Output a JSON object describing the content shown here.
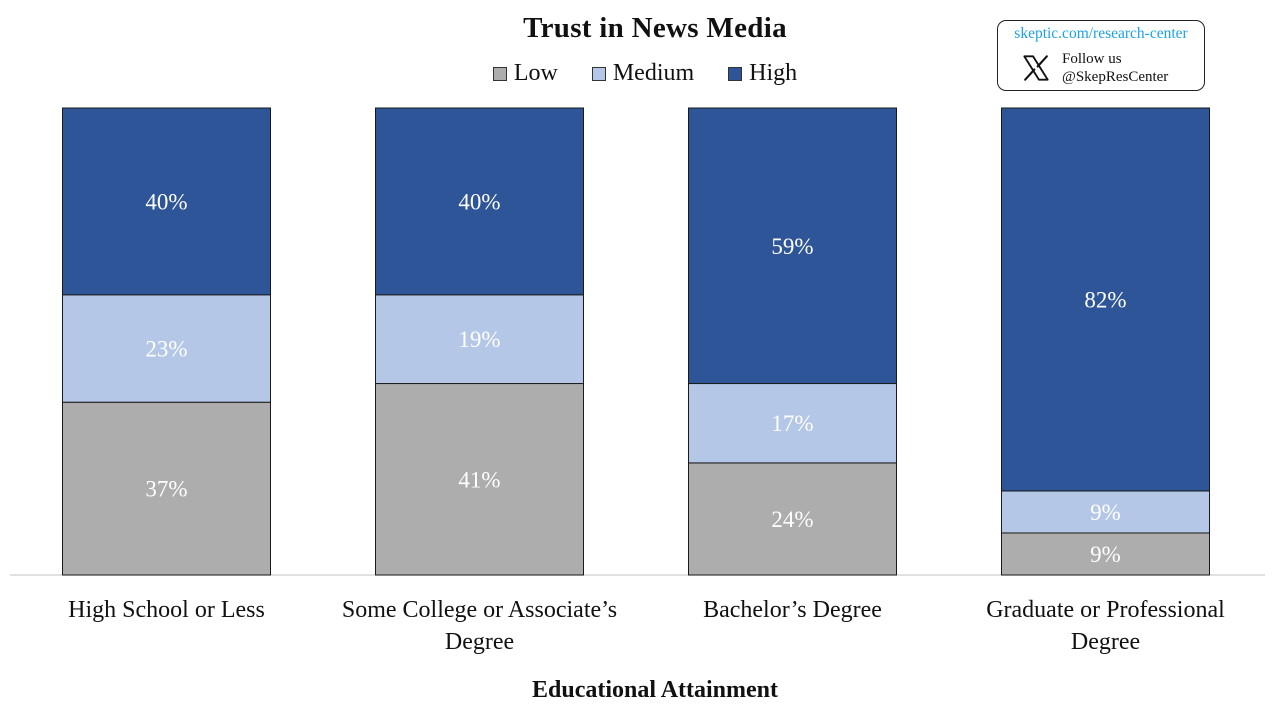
{
  "chart_data": {
    "type": "bar",
    "stacked": true,
    "title": "Trust in News Media",
    "xlabel": "Educational Attainment",
    "ylabel": "",
    "ylim": [
      0,
      100
    ],
    "categories": [
      [
        "High School or Less"
      ],
      [
        "Some College or Associate’s",
        "Degree"
      ],
      [
        "Bachelor’s Degree"
      ],
      [
        "Graduate or Professional",
        "Degree"
      ]
    ],
    "series": [
      {
        "name": "Low",
        "color": "#aeadad",
        "values": [
          37,
          41,
          24,
          9
        ],
        "labels": [
          "37%",
          "41%",
          "24%",
          "9%"
        ]
      },
      {
        "name": "Medium",
        "color": "#b4c7e7",
        "values": [
          23,
          19,
          17,
          9
        ],
        "labels": [
          "23%",
          "19%",
          "17%",
          "9%"
        ]
      },
      {
        "name": "High",
        "color": "#2e5597",
        "values": [
          40,
          40,
          59,
          82
        ],
        "labels": [
          "40%",
          "40%",
          "59%",
          "82%"
        ]
      }
    ],
    "legend_position": "top-center",
    "grid": false
  },
  "badge": {
    "url": "skeptic.com/research-center",
    "follow": "Follow us",
    "handle": "@SkepResCenter",
    "icon": "x-logo-icon"
  }
}
